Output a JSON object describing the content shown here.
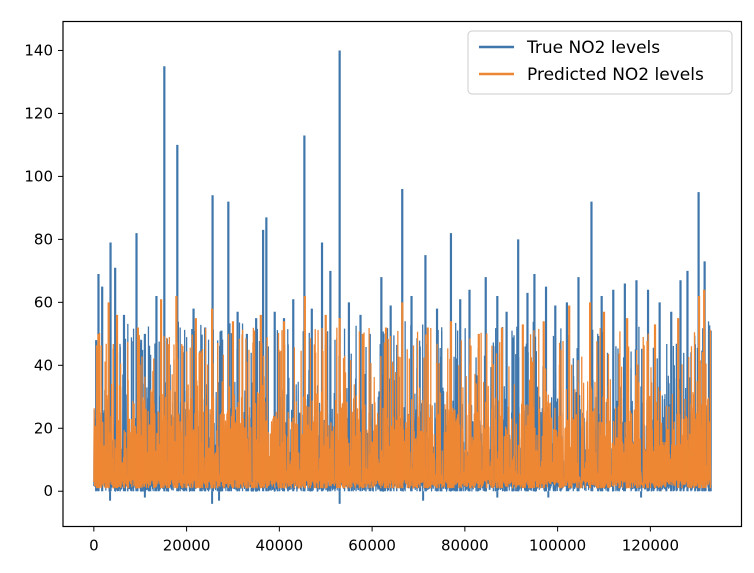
{
  "chart_data": {
    "type": "line",
    "title": "",
    "xlabel": "",
    "ylabel": "",
    "xlim": [
      -6650,
      139650
    ],
    "ylim": [
      -11.2,
      149.2
    ],
    "x_ticks": [
      0,
      20000,
      40000,
      60000,
      80000,
      100000,
      120000
    ],
    "y_ticks": [
      0,
      20,
      40,
      60,
      80,
      100,
      120,
      140
    ],
    "grid": false,
    "legend": {
      "position": "upper right"
    },
    "series": [
      {
        "name": "True NO2 levels",
        "color": "#3f76ab",
        "baseline_band": [
          0,
          42
        ],
        "x_max": 133000,
        "peaks": [
          {
            "x": 500,
            "y": 48
          },
          {
            "x": 1000,
            "y": 69
          },
          {
            "x": 1800,
            "y": 65
          },
          {
            "x": 3600,
            "y": 79
          },
          {
            "x": 4600,
            "y": 71
          },
          {
            "x": 6500,
            "y": 56
          },
          {
            "x": 9200,
            "y": 82
          },
          {
            "x": 11000,
            "y": 50
          },
          {
            "x": 13500,
            "y": 62
          },
          {
            "x": 15200,
            "y": 135
          },
          {
            "x": 18000,
            "y": 110
          },
          {
            "x": 21500,
            "y": 58
          },
          {
            "x": 24000,
            "y": 52
          },
          {
            "x": 25600,
            "y": 94
          },
          {
            "x": 27500,
            "y": 51
          },
          {
            "x": 29000,
            "y": 92
          },
          {
            "x": 31000,
            "y": 57
          },
          {
            "x": 33000,
            "y": 50
          },
          {
            "x": 35000,
            "y": 55
          },
          {
            "x": 36500,
            "y": 83
          },
          {
            "x": 37200,
            "y": 87
          },
          {
            "x": 39000,
            "y": 57
          },
          {
            "x": 41000,
            "y": 55
          },
          {
            "x": 43000,
            "y": 61
          },
          {
            "x": 45400,
            "y": 113
          },
          {
            "x": 47000,
            "y": 58
          },
          {
            "x": 49200,
            "y": 79
          },
          {
            "x": 51000,
            "y": 70
          },
          {
            "x": 53000,
            "y": 140
          },
          {
            "x": 55000,
            "y": 60
          },
          {
            "x": 57500,
            "y": 56
          },
          {
            "x": 59500,
            "y": 50
          },
          {
            "x": 62000,
            "y": 68
          },
          {
            "x": 64000,
            "y": 59
          },
          {
            "x": 66500,
            "y": 96
          },
          {
            "x": 68500,
            "y": 62
          },
          {
            "x": 71500,
            "y": 75
          },
          {
            "x": 74000,
            "y": 58
          },
          {
            "x": 77000,
            "y": 82
          },
          {
            "x": 79000,
            "y": 61
          },
          {
            "x": 81000,
            "y": 64
          },
          {
            "x": 84500,
            "y": 68
          },
          {
            "x": 87000,
            "y": 62
          },
          {
            "x": 89000,
            "y": 57
          },
          {
            "x": 91500,
            "y": 80
          },
          {
            "x": 93500,
            "y": 63
          },
          {
            "x": 95000,
            "y": 69
          },
          {
            "x": 97500,
            "y": 65
          },
          {
            "x": 99500,
            "y": 59
          },
          {
            "x": 102000,
            "y": 60
          },
          {
            "x": 104500,
            "y": 68
          },
          {
            "x": 107300,
            "y": 92
          },
          {
            "x": 109500,
            "y": 62
          },
          {
            "x": 112000,
            "y": 64
          },
          {
            "x": 114500,
            "y": 66
          },
          {
            "x": 117000,
            "y": 67
          },
          {
            "x": 119500,
            "y": 64
          },
          {
            "x": 122000,
            "y": 60
          },
          {
            "x": 124500,
            "y": 57
          },
          {
            "x": 126500,
            "y": 67
          },
          {
            "x": 128000,
            "y": 70
          },
          {
            "x": 130400,
            "y": 95
          },
          {
            "x": 131700,
            "y": 73
          },
          {
            "x": 133000,
            "y": 51
          }
        ],
        "dips": [
          {
            "x": 3500,
            "y": -3
          },
          {
            "x": 11000,
            "y": -2
          },
          {
            "x": 25500,
            "y": -4
          },
          {
            "x": 27000,
            "y": -3
          },
          {
            "x": 53000,
            "y": -4
          },
          {
            "x": 71000,
            "y": -3
          },
          {
            "x": 87000,
            "y": -2
          },
          {
            "x": 98000,
            "y": -2
          },
          {
            "x": 118000,
            "y": -2
          }
        ]
      },
      {
        "name": "Predicted NO2 levels",
        "color": "#ee8734",
        "baseline_band": [
          1,
          40
        ],
        "x_max": 133000,
        "peaks": [
          {
            "x": 1000,
            "y": 50
          },
          {
            "x": 3200,
            "y": 60
          },
          {
            "x": 5000,
            "y": 56
          },
          {
            "x": 9500,
            "y": 52
          },
          {
            "x": 14500,
            "y": 61
          },
          {
            "x": 17800,
            "y": 62
          },
          {
            "x": 22000,
            "y": 55
          },
          {
            "x": 25500,
            "y": 58
          },
          {
            "x": 30000,
            "y": 54
          },
          {
            "x": 36000,
            "y": 56
          },
          {
            "x": 41000,
            "y": 54
          },
          {
            "x": 45500,
            "y": 62
          },
          {
            "x": 50000,
            "y": 56
          },
          {
            "x": 53000,
            "y": 55
          },
          {
            "x": 58000,
            "y": 50
          },
          {
            "x": 63000,
            "y": 52
          },
          {
            "x": 66500,
            "y": 60
          },
          {
            "x": 72000,
            "y": 52
          },
          {
            "x": 77000,
            "y": 54
          },
          {
            "x": 83000,
            "y": 50
          },
          {
            "x": 88000,
            "y": 52
          },
          {
            "x": 92500,
            "y": 53
          },
          {
            "x": 97000,
            "y": 54
          },
          {
            "x": 102500,
            "y": 59
          },
          {
            "x": 107000,
            "y": 60
          },
          {
            "x": 110000,
            "y": 57
          },
          {
            "x": 115000,
            "y": 55
          },
          {
            "x": 121000,
            "y": 53
          },
          {
            "x": 126000,
            "y": 55
          },
          {
            "x": 130500,
            "y": 62
          },
          {
            "x": 131600,
            "y": 64
          }
        ]
      }
    ]
  }
}
